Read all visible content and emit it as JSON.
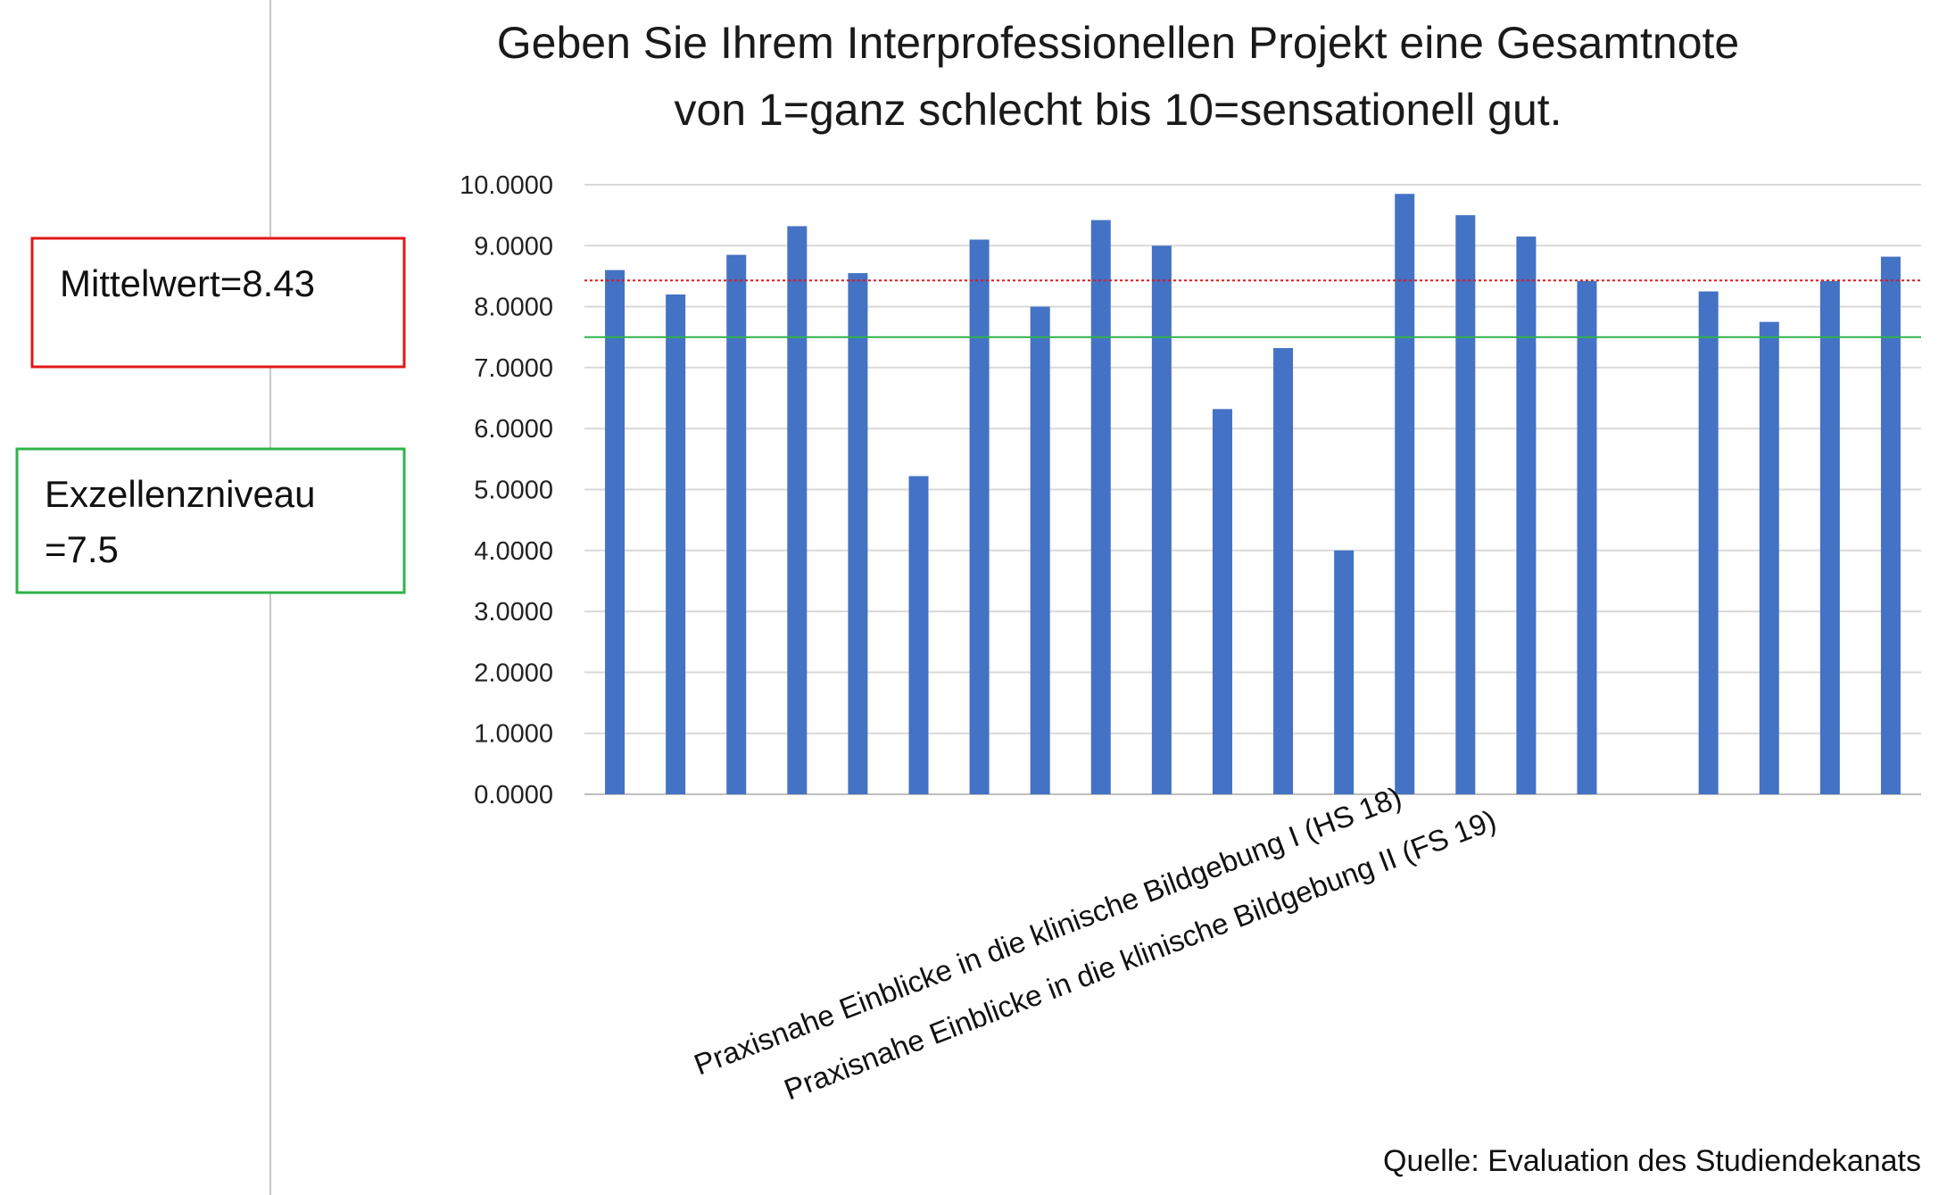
{
  "chart_data": {
    "type": "bar",
    "title_lines": [
      "Geben Sie Ihrem Interprofessionellen Projekt eine Gesamtnote",
      "von 1=ganz schlecht bis 10=sensationell gut."
    ],
    "y_ticks": [
      "0.0000",
      "1.0000",
      "2.0000",
      "3.0000",
      "4.0000",
      "5.0000",
      "6.0000",
      "7.0000",
      "8.0000",
      "9.0000",
      "10.0000"
    ],
    "ylim": [
      0,
      10
    ],
    "grid": true,
    "values": [
      8.6,
      8.2,
      8.85,
      9.32,
      8.55,
      5.22,
      9.1,
      8.0,
      9.42,
      9.0,
      6.32,
      7.32,
      4.0,
      9.85,
      9.5,
      9.15,
      8.42,
      null,
      8.25,
      7.75,
      8.42,
      8.82
    ],
    "category_labels": [
      "Praxisnahe Einblicke in die klinische Bildgebung I (HS 18)",
      "Praxisnahe Einblicke in die klinische Bildgebung II (FS 19)"
    ],
    "reference_lines": [
      {
        "value": 8.43,
        "color": "#e01818",
        "style": "dotted"
      },
      {
        "value": 7.5,
        "color": "#2fb34a",
        "style": "solid"
      }
    ],
    "bar_color": "#4472c4"
  },
  "boxes": {
    "mean": {
      "text": "Mittelwert=8.43",
      "color": "#e01818"
    },
    "excellence": {
      "line1": "Exzellenzniveau",
      "line2": "=7.5",
      "color": "#2fb34a"
    }
  },
  "source": "Quelle: Evaluation des Studiendekanats"
}
